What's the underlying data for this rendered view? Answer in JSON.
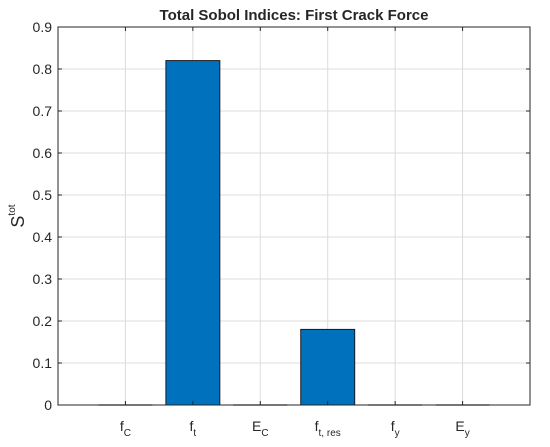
{
  "chart_data": {
    "type": "bar",
    "title": "Total Sobol Indices: First Crack Force",
    "ylabel": {
      "base": "S",
      "sup": "tot"
    },
    "xlabel": "",
    "categories": [
      {
        "base": "f",
        "sub": "C"
      },
      {
        "base": "f",
        "sub": "t"
      },
      {
        "base": "E",
        "sub": "C"
      },
      {
        "base": "f",
        "sub": "t, res"
      },
      {
        "base": "f",
        "sub": "y"
      },
      {
        "base": "E",
        "sub": "y"
      }
    ],
    "values": [
      0.0,
      0.82,
      0.0,
      0.18,
      0.0,
      0.0
    ],
    "ylim": [
      0,
      0.9
    ],
    "yticks": [
      0,
      0.1,
      0.2,
      0.3,
      0.4,
      0.5,
      0.6,
      0.7,
      0.8,
      0.9
    ],
    "ytick_labels": [
      "0",
      "0.1",
      "0.2",
      "0.3",
      "0.4",
      "0.5",
      "0.6",
      "0.7",
      "0.8",
      "0.9"
    ],
    "grid": true,
    "bar_color": "#0072BD"
  }
}
